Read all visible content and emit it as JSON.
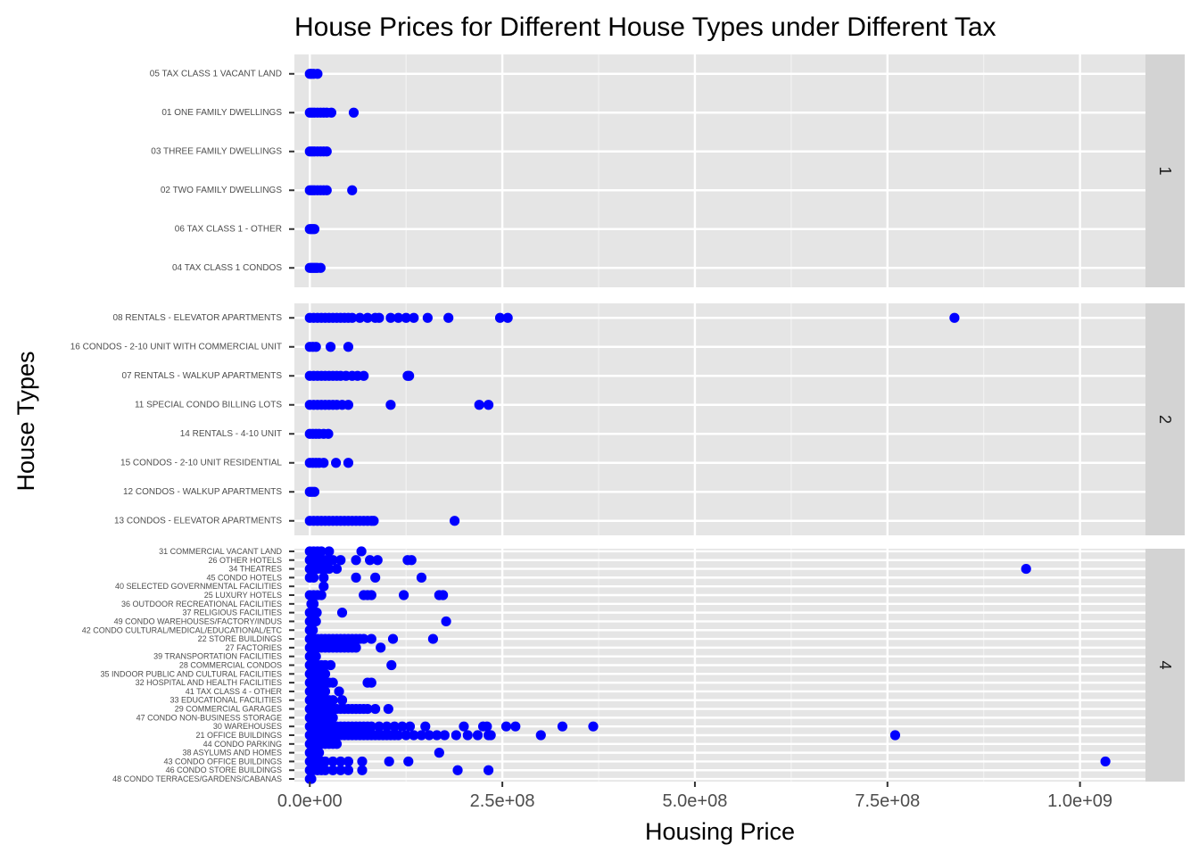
{
  "chart_data": {
    "type": "scatter",
    "title": "House Prices for Different House Types under Different Tax",
    "xlabel": "Housing Price",
    "ylabel": "House Types",
    "xlim": [
      -20000000.0,
      1085000000.0
    ],
    "x_ticks": [
      {
        "value": 0,
        "label": "0.0e+00"
      },
      {
        "value": 250000000,
        "label": "2.5e+08"
      },
      {
        "value": 500000000,
        "label": "5.0e+08"
      },
      {
        "value": 750000000,
        "label": "7.5e+08"
      },
      {
        "value": 1000000000,
        "label": "1.0e+09"
      }
    ],
    "grid": true,
    "point_color": "#0000ff",
    "panel_background": "#e5e5e5",
    "strip_background": "#d3d3d3",
    "facets": [
      {
        "strip": "1",
        "categories": [
          {
            "name": "04 TAX CLASS 1 CONDOS",
            "x": [
              0,
              2000000,
              4000000,
              6000000,
              8000000,
              10000000,
              14000000
            ]
          },
          {
            "name": "06 TAX CLASS 1 - OTHER",
            "x": [
              0,
              2000000,
              4000000,
              6000000
            ]
          },
          {
            "name": "02 TWO FAMILY DWELLINGS",
            "x": [
              0,
              3000000,
              6000000,
              10000000,
              14000000,
              18000000,
              22000000,
              55000000
            ]
          },
          {
            "name": "03 THREE FAMILY DWELLINGS",
            "x": [
              0,
              3000000,
              6000000,
              10000000,
              14000000,
              18000000,
              22000000
            ]
          },
          {
            "name": "01 ONE FAMILY DWELLINGS",
            "x": [
              0,
              3000000,
              6000000,
              10000000,
              14000000,
              18000000,
              22000000,
              28000000,
              57000000
            ]
          },
          {
            "name": "05 TAX CLASS 1 VACANT LAND",
            "x": [
              0,
              2000000,
              5000000,
              10000000
            ]
          }
        ]
      },
      {
        "strip": "2",
        "categories": [
          {
            "name": "13 CONDOS - ELEVATOR APARTMENTS",
            "x": [
              0,
              5000000,
              10000000,
              15000000,
              20000000,
              25000000,
              30000000,
              35000000,
              40000000,
              45000000,
              50000000,
              55000000,
              60000000,
              65000000,
              70000000,
              75000000,
              80000000,
              83000000,
              188000000
            ]
          },
          {
            "name": "12 CONDOS - WALKUP APARTMENTS",
            "x": [
              0,
              3000000,
              6000000
            ]
          },
          {
            "name": "15 CONDOS - 2-10 UNIT RESIDENTIAL",
            "x": [
              0,
              4000000,
              8000000,
              12000000,
              18000000,
              34000000,
              50000000
            ]
          },
          {
            "name": "14 RENTALS - 4-10 UNIT",
            "x": [
              0,
              4000000,
              8000000,
              12000000,
              18000000,
              24000000
            ]
          },
          {
            "name": "11 SPECIAL CONDO BILLING LOTS",
            "x": [
              0,
              5000000,
              10000000,
              15000000,
              20000000,
              25000000,
              30000000,
              35000000,
              42000000,
              50000000,
              105000000,
              220000000,
              232000000
            ]
          },
          {
            "name": "07 RENTALS - WALKUP APARTMENTS",
            "x": [
              0,
              5000000,
              10000000,
              15000000,
              20000000,
              25000000,
              30000000,
              35000000,
              40000000,
              47000000,
              55000000,
              62000000,
              70000000,
              127000000,
              129000000
            ]
          },
          {
            "name": "16 CONDOS - 2-10 UNIT WITH COMMERCIAL UNIT",
            "x": [
              0,
              4000000,
              8000000,
              27000000,
              50000000
            ]
          },
          {
            "name": "08 RENTALS - ELEVATOR APARTMENTS",
            "x": [
              0,
              5000000,
              10000000,
              15000000,
              20000000,
              25000000,
              30000000,
              35000000,
              40000000,
              45000000,
              50000000,
              55000000,
              65000000,
              75000000,
              85000000,
              90000000,
              105000000,
              115000000,
              125000000,
              135000000,
              153000000,
              180000000,
              247000000,
              257000000,
              837000000
            ]
          }
        ]
      },
      {
        "strip": "4",
        "categories": [
          {
            "name": "48 CONDO TERRACES/GARDENS/CABANAS",
            "x": [
              0,
              2000000
            ]
          },
          {
            "name": "46 CONDO STORE BUILDINGS",
            "x": [
              0,
              5000000,
              10000000,
              15000000,
              20000000,
              30000000,
              40000000,
              50000000,
              68000000,
              192000000,
              232000000
            ]
          },
          {
            "name": "43 CONDO OFFICE BUILDINGS",
            "x": [
              0,
              5000000,
              10000000,
              15000000,
              20000000,
              30000000,
              40000000,
              50000000,
              68000000,
              103000000,
              128000000,
              1033000000
            ]
          },
          {
            "name": "38 ASYLUMS AND HOMES",
            "x": [
              0,
              4000000,
              8000000,
              12000000,
              168000000
            ]
          },
          {
            "name": "44 CONDO PARKING",
            "x": [
              0,
              5000000,
              10000000,
              15000000,
              20000000,
              25000000,
              30000000,
              35000000
            ]
          },
          {
            "name": "21 OFFICE BUILDINGS",
            "x": [
              0,
              5000000,
              10000000,
              15000000,
              20000000,
              25000000,
              30000000,
              35000000,
              40000000,
              45000000,
              50000000,
              55000000,
              60000000,
              65000000,
              70000000,
              75000000,
              80000000,
              85000000,
              90000000,
              95000000,
              100000000,
              105000000,
              110000000,
              115000000,
              125000000,
              135000000,
              145000000,
              155000000,
              165000000,
              175000000,
              190000000,
              205000000,
              218000000,
              232000000,
              235000000,
              300000000,
              760000000
            ]
          },
          {
            "name": "30 WAREHOUSES",
            "x": [
              0,
              5000000,
              10000000,
              15000000,
              20000000,
              25000000,
              30000000,
              35000000,
              40000000,
              45000000,
              50000000,
              55000000,
              60000000,
              65000000,
              70000000,
              75000000,
              80000000,
              90000000,
              100000000,
              110000000,
              120000000,
              130000000,
              150000000,
              200000000,
              225000000,
              230000000,
              255000000,
              267000000,
              328000000,
              368000000
            ]
          },
          {
            "name": "47 CONDO NON-BUSINESS STORAGE",
            "x": [
              0,
              5000000,
              10000000,
              15000000,
              20000000,
              25000000,
              30000000
            ]
          },
          {
            "name": "29 COMMERCIAL GARAGES",
            "x": [
              0,
              5000000,
              10000000,
              15000000,
              20000000,
              25000000,
              30000000,
              35000000,
              40000000,
              45000000,
              50000000,
              55000000,
              60000000,
              65000000,
              70000000,
              75000000,
              85000000,
              102000000
            ]
          },
          {
            "name": "33 EDUCATIONAL FACILITIES",
            "x": [
              0,
              5000000,
              10000000,
              15000000,
              20000000,
              25000000,
              30000000,
              42000000
            ]
          },
          {
            "name": "41 TAX CLASS 4 - OTHER",
            "x": [
              0,
              5000000,
              10000000,
              15000000,
              20000000,
              38000000
            ]
          },
          {
            "name": "32 HOSPITAL AND HEALTH FACILITIES",
            "x": [
              0,
              5000000,
              10000000,
              15000000,
              20000000,
              25000000,
              30000000,
              75000000,
              80000000
            ]
          },
          {
            "name": "35 INDOOR PUBLIC AND CULTURAL FACILITIES",
            "x": [
              0,
              5000000,
              10000000,
              15000000,
              20000000
            ]
          },
          {
            "name": "28 COMMERCIAL CONDOS",
            "x": [
              0,
              5000000,
              10000000,
              15000000,
              20000000,
              27000000,
              106000000
            ]
          },
          {
            "name": "39 TRANSPORTATION FACILITIES",
            "x": [
              0,
              4000000,
              8000000
            ]
          },
          {
            "name": "27 FACTORIES",
            "x": [
              0,
              5000000,
              10000000,
              15000000,
              20000000,
              25000000,
              30000000,
              35000000,
              40000000,
              45000000,
              50000000,
              55000000,
              60000000,
              92000000
            ]
          },
          {
            "name": "22 STORE BUILDINGS",
            "x": [
              0,
              5000000,
              10000000,
              15000000,
              20000000,
              25000000,
              30000000,
              35000000,
              40000000,
              45000000,
              50000000,
              55000000,
              60000000,
              65000000,
              70000000,
              80000000,
              108000000,
              160000000
            ]
          },
          {
            "name": "42 CONDO CULTURAL/MEDICAL/EDUCATIONAL/ETC",
            "x": [
              0,
              4000000
            ]
          },
          {
            "name": "49 CONDO WAREHOUSES/FACTORY/INDUS",
            "x": [
              0,
              4000000,
              8000000,
              177000000
            ]
          },
          {
            "name": "37 RELIGIOUS FACILITIES",
            "x": [
              0,
              3000000,
              6000000,
              9000000,
              42000000
            ]
          },
          {
            "name": "36 OUTDOOR RECREATIONAL FACILITIES",
            "x": [
              2000000,
              5000000
            ]
          },
          {
            "name": "25 LUXURY HOTELS",
            "x": [
              0,
              5000000,
              10000000,
              15000000,
              70000000,
              75000000,
              80000000,
              122000000,
              168000000,
              173000000
            ]
          },
          {
            "name": "40 SELECTED GOVERNMENTAL FACILITIES",
            "x": [
              18000000
            ]
          },
          {
            "name": "45 CONDO HOTELS",
            "x": [
              0,
              5000000,
              18000000,
              60000000,
              85000000,
              145000000
            ]
          },
          {
            "name": "34 THEATRES",
            "x": [
              0,
              5000000,
              10000000,
              15000000,
              20000000,
              25000000,
              35000000,
              930000000
            ]
          },
          {
            "name": "26 OTHER HOTELS",
            "x": [
              0,
              5000000,
              10000000,
              15000000,
              20000000,
              25000000,
              30000000,
              40000000,
              60000000,
              78000000,
              88000000,
              127000000,
              132000000
            ]
          },
          {
            "name": "31 COMMERCIAL VACANT LAND",
            "x": [
              0,
              5000000,
              10000000,
              15000000,
              25000000,
              67000000
            ]
          }
        ]
      }
    ]
  }
}
